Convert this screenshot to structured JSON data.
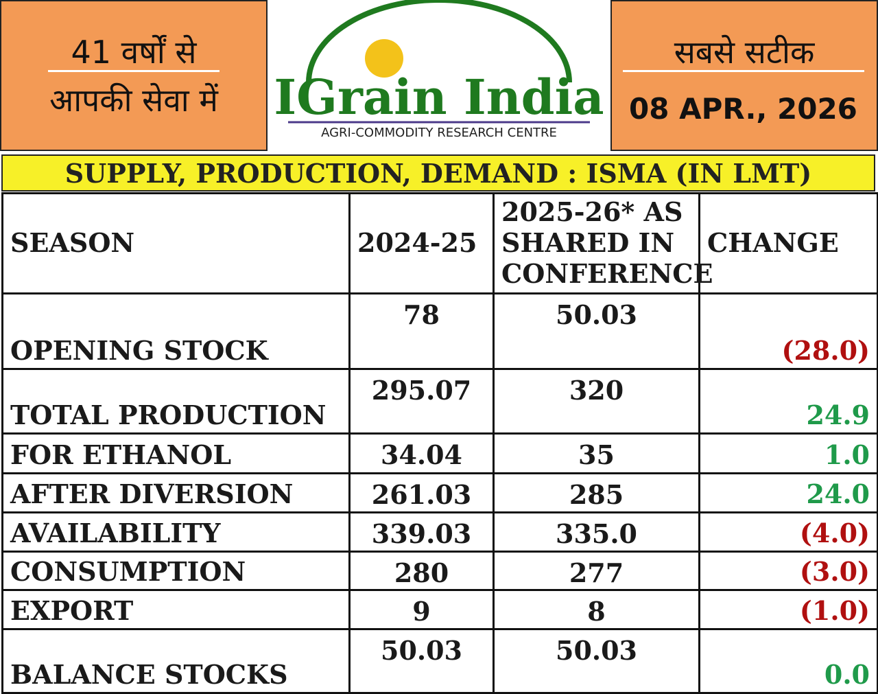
{
  "header": {
    "left_line1": "41 वर्षों से",
    "left_line2": "आपकी सेवा में",
    "logo_title": "IGrain India",
    "logo_subtitle": "AGRI-COMMODITY RESEARCH CENTRE",
    "right_line1": "सबसे सटीक",
    "date": "08 APR., 2026"
  },
  "table": {
    "title": "SUPPLY, PRODUCTION, DEMAND : ISMA (IN LMT)",
    "columns": [
      "SEASON",
      "2024-25",
      "2025-26* AS SHARED IN CONFERENCE",
      "CHANGE"
    ],
    "rows": [
      [
        "OPENING STOCK",
        "78",
        "50.03",
        "(28.0)"
      ],
      [
        "TOTAL PRODUCTION",
        "295.07",
        "320",
        "24.9"
      ],
      [
        "FOR ETHANOL",
        "34.04",
        "35",
        "1.0"
      ],
      [
        "AFTER DIVERSION",
        "261.03",
        "285",
        "24.0"
      ],
      [
        "AVAILABILITY",
        "339.03",
        "335.0",
        "(4.0)"
      ],
      [
        "CONSUMPTION",
        "280",
        "277",
        "(3.0)"
      ],
      [
        "EXPORT",
        "9",
        "8",
        "(1.0)"
      ],
      [
        "BALANCE STOCKS",
        "50.03",
        "50.03",
        "0.0"
      ]
    ]
  }
}
